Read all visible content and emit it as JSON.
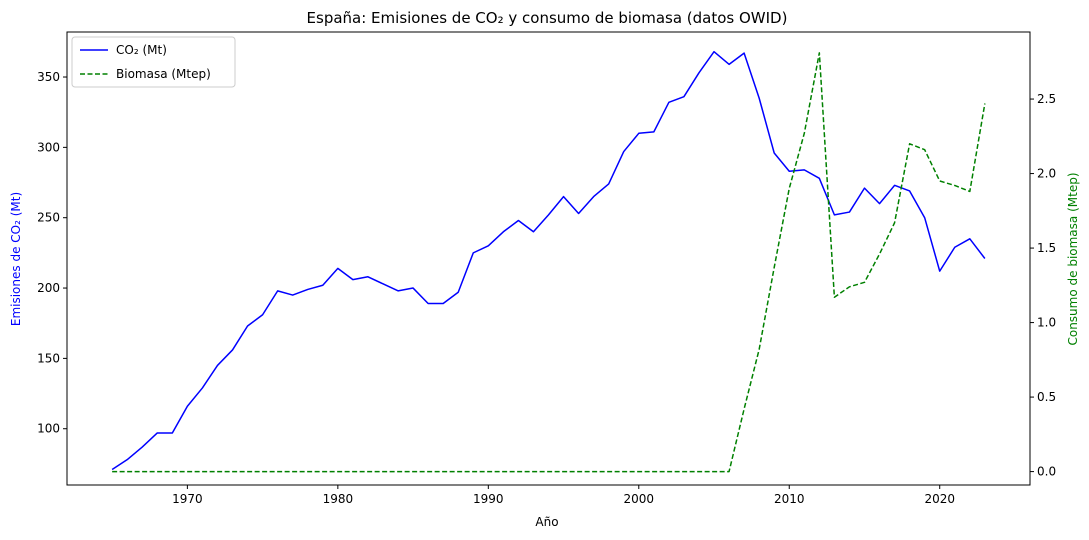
{
  "chart_data": {
    "type": "line",
    "title": "España: Emisiones de CO₂ y consumo de biomasa (datos OWID)",
    "xlabel": "Año",
    "ylabel_left": "Emisiones de CO₂ (Mt)",
    "ylabel_right": "Consumo de biomasa (Mtep)",
    "xlim": [
      1962,
      2026
    ],
    "ylim_left": [
      60,
      382
    ],
    "ylim_right": [
      -0.09,
      2.95
    ],
    "x_ticks": [
      1970,
      1980,
      1990,
      2000,
      2010,
      2020
    ],
    "y_ticks_left": [
      100,
      150,
      200,
      250,
      300,
      350
    ],
    "y_ticks_right": [
      0.0,
      0.5,
      1.0,
      1.5,
      2.0,
      2.5
    ],
    "y_tick_labels_right": [
      "0.0",
      "0.5",
      "1.0",
      "1.5",
      "2.0",
      "2.5"
    ],
    "grid": false,
    "legend_position": "top-left",
    "colors": {
      "co2": "#0000ff",
      "biomasa": "#008000"
    },
    "x": [
      1965,
      1966,
      1967,
      1968,
      1969,
      1970,
      1971,
      1972,
      1973,
      1974,
      1975,
      1976,
      1977,
      1978,
      1979,
      1980,
      1981,
      1982,
      1983,
      1984,
      1985,
      1986,
      1987,
      1988,
      1989,
      1990,
      1991,
      1992,
      1993,
      1994,
      1995,
      1996,
      1997,
      1998,
      1999,
      2000,
      2001,
      2002,
      2003,
      2004,
      2005,
      2006,
      2007,
      2008,
      2009,
      2010,
      2011,
      2012,
      2013,
      2014,
      2015,
      2016,
      2017,
      2018,
      2019,
      2020,
      2021,
      2022,
      2023
    ],
    "series": [
      {
        "name": "CO₂ (Mt)",
        "axis": "left",
        "style": "solid",
        "values": [
          71,
          78,
          87,
          97,
          97,
          116,
          129,
          145,
          156,
          173,
          181,
          198,
          195,
          199,
          202,
          214,
          206,
          208,
          203,
          198,
          200,
          189,
          189,
          197,
          225,
          230,
          240,
          248,
          240,
          252,
          265,
          253,
          265,
          274,
          297,
          310,
          311,
          332,
          336,
          353,
          368,
          359,
          367,
          335,
          296,
          283,
          284,
          278,
          252,
          254,
          271,
          260,
          273,
          269,
          250,
          212,
          229,
          235,
          221
        ]
      },
      {
        "name": "Biomasa (Mtep)",
        "axis": "right",
        "style": "dashed",
        "values": [
          0,
          0,
          0,
          0,
          0,
          0,
          0,
          0,
          0,
          0,
          0,
          0,
          0,
          0,
          0,
          0,
          0,
          0,
          0,
          0,
          0,
          0,
          0,
          0,
          0,
          0,
          0,
          0,
          0,
          0,
          0,
          0,
          0,
          0,
          0,
          0,
          0,
          0,
          0,
          0,
          0,
          0,
          0.42,
          0.82,
          1.37,
          1.9,
          2.27,
          2.81,
          1.17,
          1.24,
          1.27,
          1.46,
          1.67,
          2.2,
          2.16,
          1.95,
          1.92,
          1.88,
          2.47
        ]
      }
    ]
  }
}
